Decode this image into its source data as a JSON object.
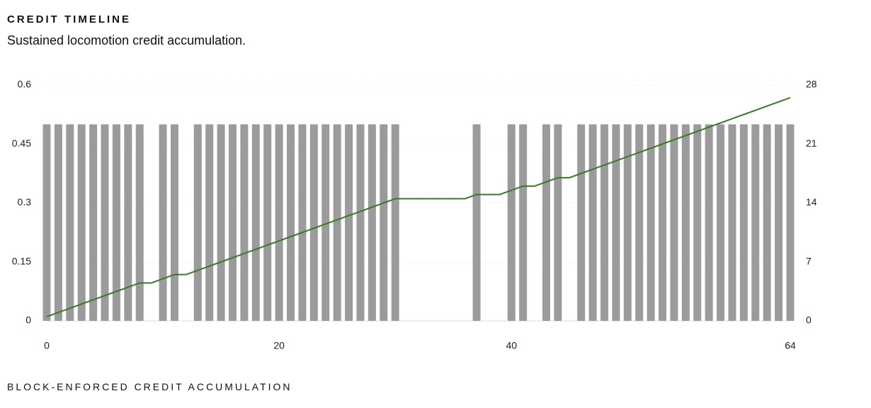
{
  "chart_data": {
    "type": "bar-line",
    "title": "CREDIT TIMELINE",
    "subtitle": "Sustained locomotion credit accumulation.",
    "footer": "BLOCK-ENFORCED CREDIT ACCUMULATION",
    "x": [
      0,
      1,
      2,
      3,
      4,
      5,
      6,
      7,
      8,
      9,
      10,
      11,
      12,
      13,
      14,
      15,
      16,
      17,
      18,
      19,
      20,
      21,
      22,
      23,
      24,
      25,
      26,
      27,
      28,
      29,
      30,
      31,
      32,
      33,
      34,
      35,
      36,
      37,
      38,
      39,
      40,
      41,
      42,
      43,
      44,
      45,
      46,
      47,
      48,
      49,
      50,
      51,
      52,
      53,
      54,
      55,
      56,
      57,
      58,
      59,
      60,
      61,
      62,
      63,
      64
    ],
    "xlim": [
      0,
      64
    ],
    "xticks": [
      0,
      20,
      40,
      64
    ],
    "ylim": [
      0,
      0.6
    ],
    "yticks": [
      0,
      0.15,
      0.3,
      0.45,
      0.6
    ],
    "y2lim": [
      0,
      28
    ],
    "y2ticks": [
      0,
      7,
      14,
      21,
      28
    ],
    "grid": true,
    "series": [
      {
        "kind": "bar",
        "color": "#9b9b9b",
        "values": [
          0.5,
          0.5,
          0.5,
          0.5,
          0.5,
          0.5,
          0.5,
          0.5,
          0.5,
          0,
          0.5,
          0.5,
          0,
          0.5,
          0.5,
          0.5,
          0.5,
          0.5,
          0.5,
          0.5,
          0.5,
          0.5,
          0.5,
          0.5,
          0.5,
          0.5,
          0.5,
          0.5,
          0.5,
          0.5,
          0.5,
          0,
          0,
          0,
          0,
          0,
          0,
          0.5,
          0,
          0,
          0.5,
          0.5,
          0,
          0.5,
          0.5,
          0,
          0.5,
          0.5,
          0.5,
          0.5,
          0.5,
          0.5,
          0.5,
          0.5,
          0.5,
          0.5,
          0.5,
          0.5,
          0.5,
          0.5,
          0.5,
          0.5,
          0.5,
          0.5,
          0.5
        ]
      },
      {
        "kind": "line",
        "axis": "y2",
        "color": "#3a7a24",
        "values": [
          0.5,
          1,
          1.5,
          2,
          2.5,
          3,
          3.5,
          4,
          4.5,
          4.5,
          5,
          5.5,
          5.5,
          6,
          6.5,
          7,
          7.5,
          8,
          8.5,
          9,
          9.5,
          10,
          10.5,
          11,
          11.5,
          12,
          12.5,
          13,
          13.5,
          14,
          14.5,
          14.5,
          14.5,
          14.5,
          14.5,
          14.5,
          14.5,
          15,
          15,
          15,
          15.5,
          16,
          16,
          16.5,
          17,
          17,
          17.5,
          18,
          18.5,
          19,
          19.5,
          20,
          20.5,
          21,
          21.5,
          22,
          22.5,
          23,
          23.5,
          24,
          24.5,
          25,
          25.5,
          26,
          26.5
        ]
      }
    ]
  }
}
